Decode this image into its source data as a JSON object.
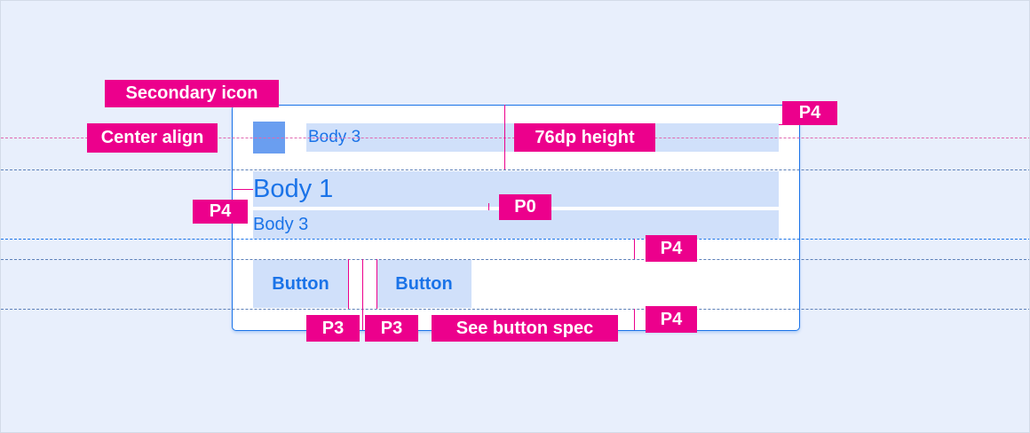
{
  "labels": {
    "secondary_icon": "Secondary icon",
    "center_align": "Center align",
    "height": "76dp height",
    "p4": "P4",
    "p0": "P0",
    "p3": "P3",
    "button_spec": "See button spec"
  },
  "card": {
    "header_text": "Body 3",
    "title": "Body 1",
    "subtitle": "Body 3",
    "buttons": [
      "Button",
      "Button"
    ]
  },
  "colors": {
    "annotation": "#ec008c",
    "accent": "#1a73e8",
    "icon": "#6a9ef0",
    "highlight": "#d0e0fa"
  }
}
